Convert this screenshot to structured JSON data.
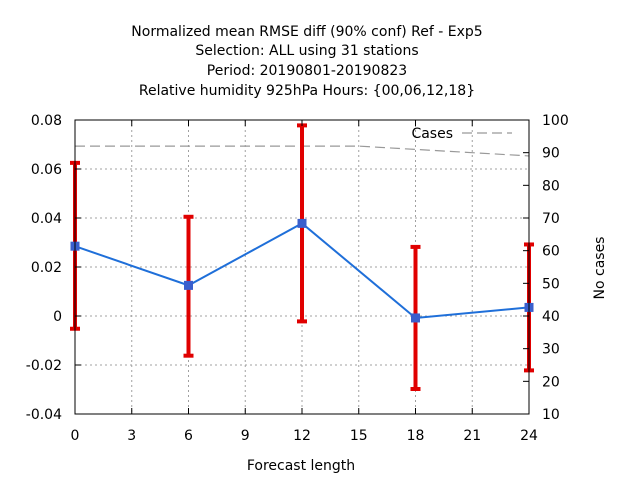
{
  "chart_data": {
    "type": "line",
    "title_lines": [
      "Normalized mean RMSE diff (90% conf) Ref - Exp5",
      "Selection: ALL using    31 stations",
      "Period: 20190801-20190823",
      "Relative humidity 925hPa   Hours: {00,06,12,18}"
    ],
    "xlabel": "Forecast length",
    "ylabel": "",
    "y2label": "No cases",
    "xlim": [
      0,
      24
    ],
    "ylim": [
      -0.04,
      0.08
    ],
    "y2lim": [
      10,
      100
    ],
    "xticks": [
      0,
      3,
      6,
      9,
      12,
      15,
      18,
      21,
      24
    ],
    "yticks": [
      -0.04,
      -0.02,
      0,
      0.02,
      0.04,
      0.06,
      0.08
    ],
    "ytick_labels": [
      "-0.04",
      "-0.02",
      "0",
      "0.02",
      "0.04",
      "0.06",
      "0.08"
    ],
    "y2ticks": [
      10,
      20,
      30,
      40,
      50,
      60,
      70,
      80,
      90,
      100
    ],
    "grid": true,
    "legend_position": "top-right",
    "series": [
      {
        "name": "",
        "axis": "left",
        "color": "#1f6fd9",
        "marker_color": "#3a5fcd",
        "x": [
          0,
          6,
          12,
          18,
          24
        ],
        "y": [
          0.0285,
          0.0125,
          0.0378,
          -0.0008,
          0.0035
        ],
        "error_low": [
          -0.0052,
          -0.0162,
          -0.0022,
          -0.0298,
          -0.0222
        ],
        "error_high": [
          0.0625,
          0.0405,
          0.0778,
          0.0282,
          0.0292
        ],
        "error_color": "#e00000"
      },
      {
        "name": "Cases",
        "axis": "right",
        "color": "#999999",
        "style": "dashed",
        "x": [
          0,
          3,
          6,
          9,
          12,
          15,
          18,
          21,
          24
        ],
        "y": [
          92,
          92,
          92,
          92,
          92,
          92,
          91,
          90,
          89
        ]
      }
    ]
  }
}
